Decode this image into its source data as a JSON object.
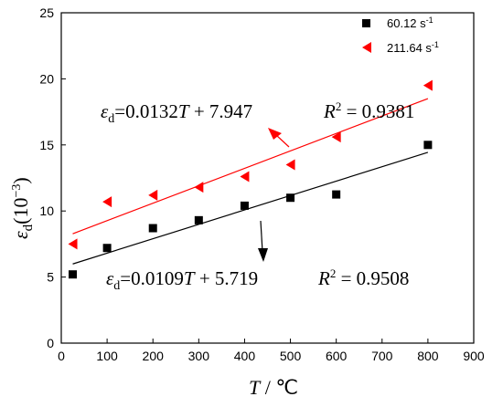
{
  "chart_data": {
    "type": "scatter",
    "xlabel_symbol": "T",
    "xlabel_unit": "℃",
    "ylabel_symbol": "ε",
    "ylabel_subscript": "d",
    "ylabel_unit": "(10",
    "ylabel_unit_exp": "−3",
    "ylabel_unit_close": ")",
    "xlim": [
      0,
      900
    ],
    "ylim": [
      0,
      25
    ],
    "xticks": [
      "0",
      "100",
      "200",
      "300",
      "400",
      "500",
      "600",
      "700",
      "800",
      "900"
    ],
    "yticks": [
      "0",
      "5",
      "10",
      "15",
      "20",
      "25"
    ],
    "grid": false,
    "legend_position": "top-right",
    "series": [
      {
        "name": "60.12 s",
        "name_sup": "-1",
        "marker": "square",
        "color": "#000000",
        "x": [
          25,
          100,
          200,
          300,
          400,
          500,
          600,
          800
        ],
        "y": [
          5.2,
          7.2,
          8.7,
          9.3,
          10.4,
          11.0,
          11.25,
          15.0
        ],
        "fit": {
          "slope": 0.0109,
          "intercept": 5.719,
          "x_range": [
            25,
            800
          ]
        },
        "equation": {
          "lhs": "ε",
          "lhs_sub": "d",
          "rhs": "=0.0109",
          "var": "T",
          "const": " + 5.719",
          "r2_label": "R",
          "r2_exp": "2",
          "r2_value": " = 0.9508"
        }
      },
      {
        "name": "211.64 s",
        "name_sup": "-1",
        "marker": "triangle-left",
        "color": "#ff0000",
        "x": [
          25,
          100,
          200,
          300,
          400,
          500,
          600,
          800
        ],
        "y": [
          7.5,
          10.7,
          11.2,
          11.8,
          12.6,
          13.5,
          15.6,
          19.5
        ],
        "fit": {
          "slope": 0.0132,
          "intercept": 7.947,
          "x_range": [
            25,
            800
          ]
        },
        "equation": {
          "lhs": "ε",
          "lhs_sub": "d",
          "rhs": "=0.0132",
          "var": "T",
          "const": " + 7.947",
          "r2_label": "R",
          "r2_exp": "2",
          "r2_value": " = 0.9381"
        }
      }
    ]
  }
}
